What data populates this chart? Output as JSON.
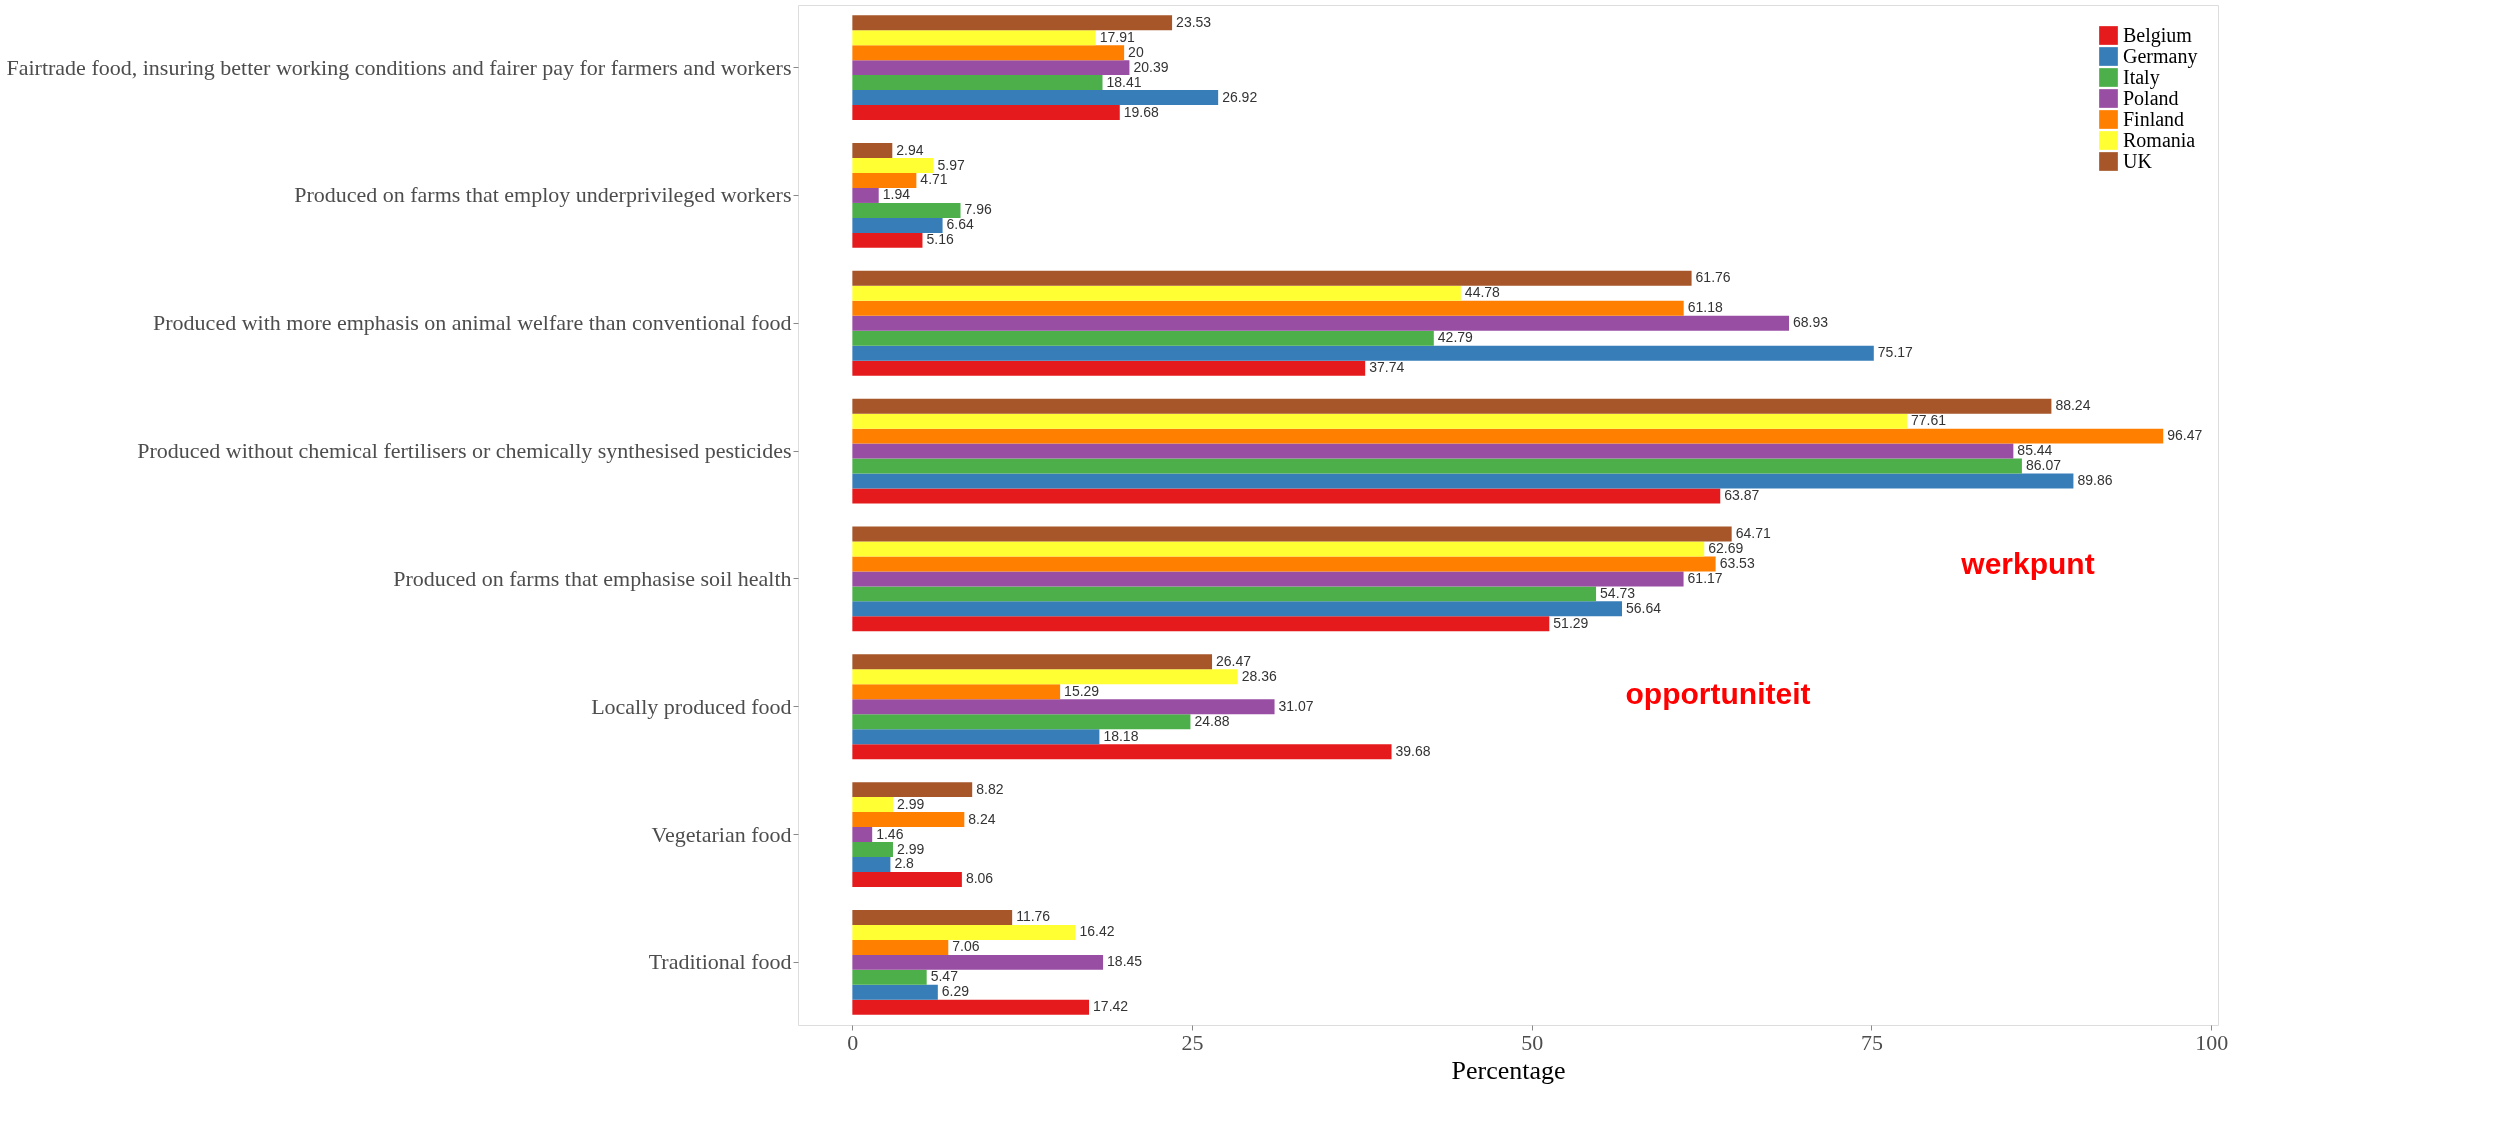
{
  "chart_data": {
    "type": "bar",
    "orientation": "horizontal",
    "xlabel": "Percentage",
    "categories": [
      "Fairtrade food, insuring better working conditions and fairer pay for farmers and workers",
      "Produced on farms that employ underprivileged workers",
      "Produced with more emphasis on animal welfare than conventional food",
      "Produced without chemical fertilisers or chemically synthesised pesticides",
      "Produced on farms that emphasise soil health",
      "Locally produced food",
      "Vegetarian food",
      "Traditional food"
    ],
    "series": [
      {
        "name": "Belgium",
        "color": "#e41a1c",
        "values": [
          19.68,
          5.16,
          37.74,
          63.87,
          51.29,
          39.68,
          8.06,
          17.42
        ]
      },
      {
        "name": "Germany",
        "color": "#377eb8",
        "values": [
          26.92,
          6.64,
          75.17,
          89.86,
          56.64,
          18.18,
          2.8,
          6.29
        ]
      },
      {
        "name": "Italy",
        "color": "#4daf4a",
        "values": [
          18.41,
          7.96,
          42.79,
          86.07,
          54.73,
          24.88,
          2.99,
          5.47
        ]
      },
      {
        "name": "Poland",
        "color": "#984ea3",
        "values": [
          20.39,
          1.94,
          68.93,
          85.44,
          61.17,
          31.07,
          1.46,
          18.45
        ]
      },
      {
        "name": "Finland",
        "color": "#ff7f00",
        "values": [
          20,
          4.71,
          61.18,
          96.47,
          63.53,
          15.29,
          8.24,
          7.06
        ]
      },
      {
        "name": "Romania",
        "color": "#ffff33",
        "values": [
          17.91,
          5.97,
          44.78,
          77.61,
          62.69,
          28.36,
          2.99,
          16.42
        ]
      },
      {
        "name": "UK",
        "color": "#a65628",
        "values": [
          23.53,
          2.94,
          61.76,
          88.24,
          64.71,
          26.47,
          8.82,
          11.76
        ]
      }
    ],
    "xlim": [
      -4,
      100.5
    ],
    "xticks": [
      0,
      25,
      50,
      75,
      100
    ],
    "grid": false,
    "legend": "top right",
    "data_labels": true,
    "annotations": [
      "werkpunt",
      "opportuniteit"
    ]
  }
}
